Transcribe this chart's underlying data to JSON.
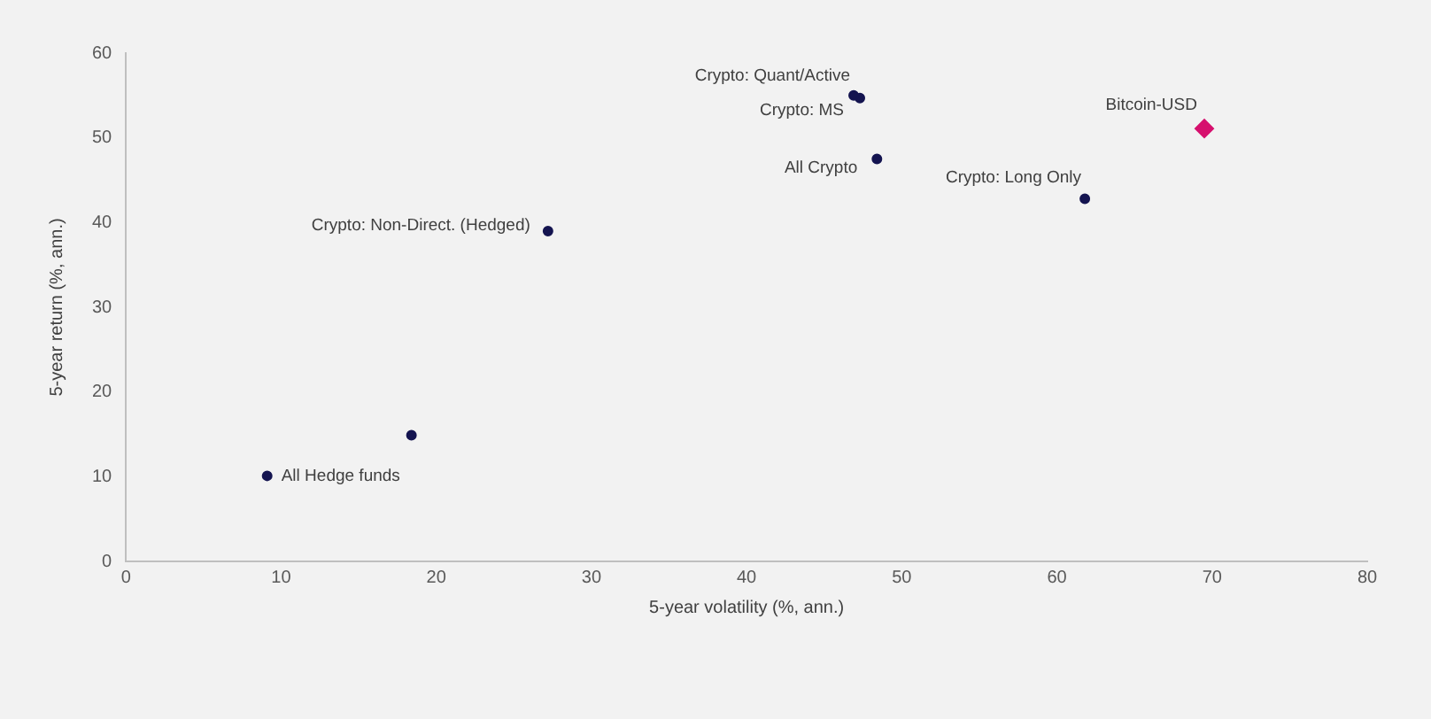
{
  "chart_data": {
    "type": "scatter",
    "xlabel": "5-year volatility (%, ann.)",
    "ylabel": "5-year return (%, ann.)",
    "xlim": [
      0,
      80
    ],
    "xticks": [
      0,
      10,
      20,
      30,
      40,
      50,
      60,
      70,
      80
    ],
    "ylim": [
      0,
      60
    ],
    "yticks": [
      0,
      10,
      20,
      30,
      40,
      50,
      60
    ],
    "grid": false,
    "legend": false,
    "series": [
      {
        "name": "All Hedge funds",
        "color": "#141450",
        "x": [
          9.1
        ],
        "values": [
          10.1
        ],
        "marker": "circle"
      },
      {
        "color": "#141450",
        "x": [
          18.4
        ],
        "values": [
          14.9
        ],
        "marker": "circle"
      },
      {
        "name": "Crypto: Non-Direct. (Hedged)",
        "color": "#141450",
        "x": [
          27.2
        ],
        "values": [
          39.0
        ],
        "marker": "circle"
      },
      {
        "name": "Crypto: Quant/Active",
        "color": "#141450",
        "x": [
          46.9
        ],
        "values": [
          55.0
        ],
        "marker": "circle"
      },
      {
        "name": "Crypto: MS",
        "color": "#141450",
        "x": [
          47.3
        ],
        "values": [
          54.7
        ],
        "marker": "circle"
      },
      {
        "name": "All Crypto",
        "color": "#141450",
        "x": [
          48.4
        ],
        "values": [
          47.5
        ],
        "marker": "circle"
      },
      {
        "name": "Crypto: Long Only",
        "color": "#141450",
        "x": [
          61.8
        ],
        "values": [
          42.8
        ],
        "marker": "circle"
      },
      {
        "name": "Bitcoin-USD",
        "color": "#d6106e",
        "x": [
          69.5
        ],
        "values": [
          51.1
        ],
        "marker": "diamond"
      }
    ]
  }
}
